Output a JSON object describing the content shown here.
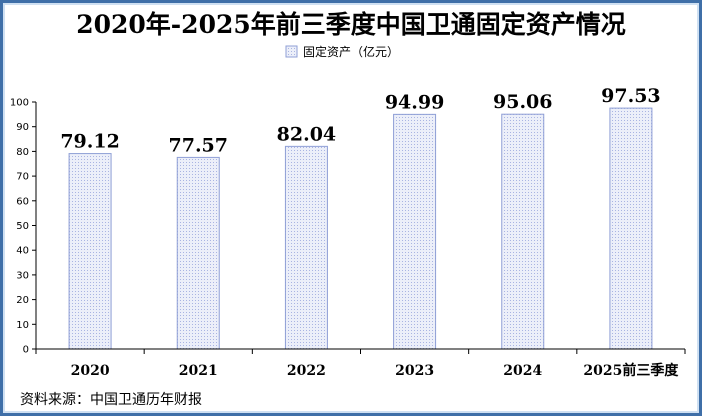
{
  "chart_data": {
    "type": "bar",
    "title": "2020年-2025年前三季度中国卫通固定资产情况",
    "categories": [
      "2020",
      "2021",
      "2022",
      "2023",
      "2024",
      "2025前三季度"
    ],
    "series": [
      {
        "name": "固定资产（亿元）",
        "values": [
          79.12,
          77.57,
          82.04,
          94.99,
          95.06,
          97.53
        ]
      }
    ],
    "value_labels": [
      "79.12",
      "77.57",
      "82.04",
      "94.99",
      "95.06",
      "97.53"
    ],
    "ylim": [
      0,
      100
    ],
    "yticks": [
      0,
      10,
      20,
      30,
      40,
      50,
      60,
      70,
      80,
      90,
      100
    ],
    "legend_position": "top-center",
    "grid": false,
    "bar_fill": "#e6e9f8",
    "bar_stroke": "#8f9fd6",
    "frame_color": "#3f6fa8"
  },
  "source": "资料来源：中国卫通历年财报"
}
